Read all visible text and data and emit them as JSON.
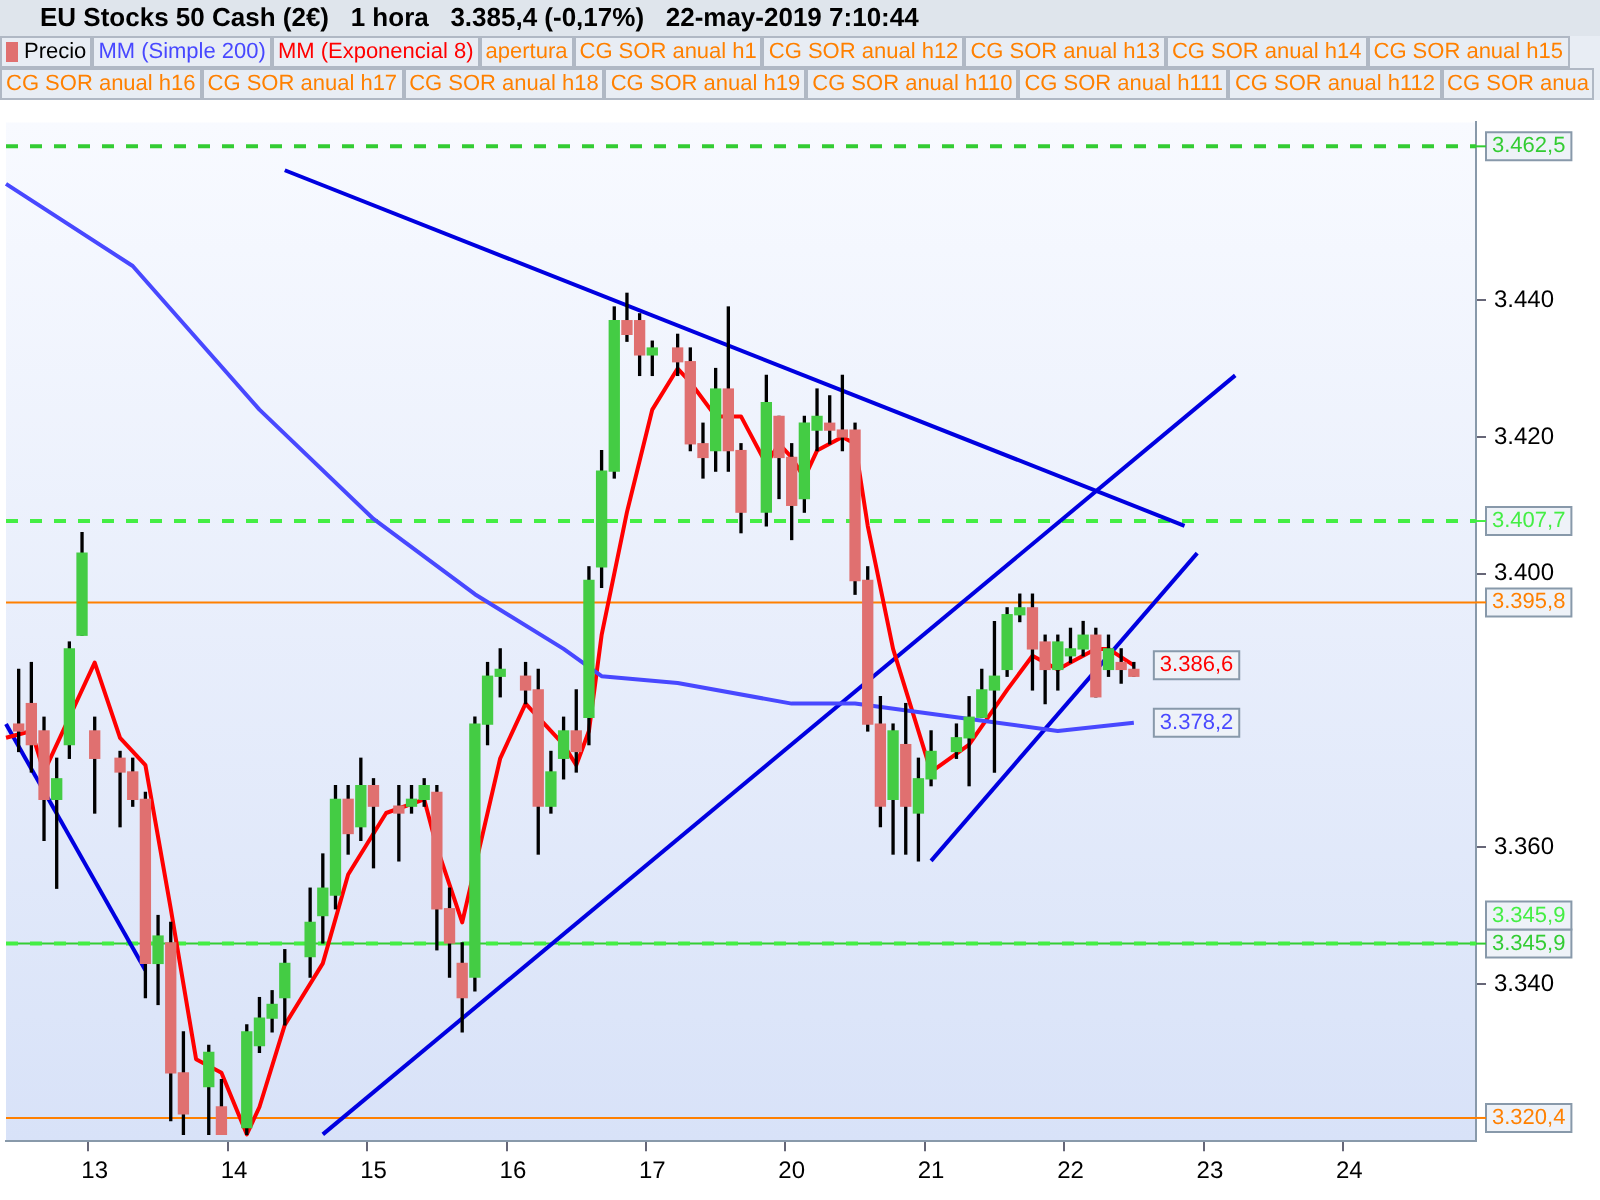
{
  "chart_data": {
    "type": "candlestick",
    "title": "EU Stocks 50 Cash (2€)   1 hora   3.385,4 (-0,17%)   22-may-2019 7:10:44",
    "legend": "top",
    "grid": false,
    "marker": "none",
    "categories": [
      null,
      null,
      null,
      null,
      null,
      null,
      null,
      "13",
      null,
      null,
      null,
      null,
      null,
      null,
      null,
      null,
      null,
      null,
      "14",
      null,
      null,
      null,
      null,
      null,
      null,
      null,
      null,
      null,
      null,
      "15",
      null,
      null,
      null,
      null,
      null,
      null,
      null,
      null,
      null,
      null,
      "16",
      null,
      null,
      null,
      null,
      null,
      null,
      null,
      null,
      null,
      null,
      "17",
      null,
      null,
      null,
      null,
      null,
      null,
      null,
      null,
      null,
      null,
      "20",
      null,
      null,
      null,
      null,
      null,
      null,
      null,
      null,
      null,
      null,
      "21",
      null,
      null,
      null,
      null,
      null,
      null,
      null,
      null,
      null,
      null,
      "22",
      null,
      null,
      null,
      null,
      null,
      null,
      null,
      null,
      null,
      null,
      "23",
      null,
      null,
      null,
      null,
      null,
      null,
      null,
      null,
      null,
      null,
      "24",
      null,
      null,
      null,
      null,
      null,
      null,
      null,
      null,
      null,
      null
    ],
    "ylim": [
      3317,
      3466
    ],
    "yticks": [
      {
        "value": 3340,
        "label": "3.340"
      },
      {
        "value": 3360,
        "label": "3.360"
      },
      {
        "value": 3400,
        "label": "3.400"
      },
      {
        "value": 3420,
        "label": "3.420"
      },
      {
        "value": 3440,
        "label": "3.440"
      }
    ],
    "annotations": [
      "apertura",
      "CG SOR anual h1",
      "CG SOR anual h12",
      "CG SOR anual h13",
      "CG SOR anual h14",
      "CG SOR anual h15",
      "CG SOR anual h16",
      "CG SOR anual h17",
      "CG SOR anual h18",
      "CG SOR anual h19",
      "CG SOR anual h110",
      "CG SOR anual h111",
      "CG SOR anual h112",
      "CG SOR anua"
    ],
    "ref_lines": [
      {
        "axis": "y",
        "value": 3462.5,
        "label": "3.462,5",
        "color": "#33cc33",
        "line_style": "dashed"
      },
      {
        "axis": "y",
        "value": 3407.7,
        "label": "3.407,7",
        "color": "#44ee44",
        "line_style": "dashed"
      },
      {
        "axis": "y",
        "value": 3395.8,
        "label": "3.395,8",
        "color": "#ff8000",
        "line_style": "solid"
      },
      {
        "axis": "y",
        "value": 3345.9,
        "label": "3.345,9",
        "color": "#33cc33",
        "line_style": "solid"
      },
      {
        "axis": "y",
        "value": 3345.9,
        "label": "3.345,9",
        "color": "#44ee44",
        "line_style": "dashed"
      },
      {
        "axis": "y",
        "value": 3320.4,
        "label": "3.320,4",
        "color": "#ff8000",
        "line_style": "solid"
      }
    ],
    "series": [
      {
        "name": "Precio",
        "color": "#000000",
        "colors": [
          null,
          "#e07070",
          "#e07070",
          "#e07070",
          "#44cc44",
          "#44cc44",
          "#44cc44",
          "#e07070",
          null,
          "#e07070",
          "#e07070",
          "#e07070",
          "#44cc44",
          "#e07070",
          "#e07070",
          null,
          "#44cc44",
          "#e07070",
          null,
          "#44cc44",
          "#44cc44",
          "#44cc44",
          "#44cc44",
          null,
          "#44cc44",
          "#44cc44",
          "#44cc44",
          "#e07070",
          "#44cc44",
          "#e07070",
          null,
          "#e07070",
          "#44cc44",
          "#44cc44",
          "#e07070",
          "#e07070",
          "#e07070",
          "#44cc44",
          "#44cc44",
          "#44cc44",
          null,
          "#e07070",
          "#e07070",
          "#44cc44",
          "#44cc44",
          "#e07070",
          "#44cc44",
          "#44cc44",
          "#44cc44",
          "#e07070",
          "#e07070",
          "#44cc44",
          null,
          "#e07070",
          "#e07070",
          "#e07070",
          "#44cc44",
          "#e07070",
          "#e07070",
          null,
          "#44cc44",
          "#e07070",
          "#e07070",
          "#44cc44",
          "#44cc44",
          "#e07070",
          "#e07070",
          "#e07070",
          "#e07070",
          "#e07070",
          "#44cc44",
          "#e07070",
          "#44cc44",
          "#44cc44",
          null,
          "#44cc44",
          "#44cc44",
          "#44cc44",
          "#44cc44",
          "#44cc44",
          "#44cc44",
          "#e07070",
          "#e07070",
          "#44cc44",
          "#44cc44",
          "#44cc44",
          "#e07070",
          "#44cc44",
          "#e07070",
          "#e07070",
          null,
          null,
          null,
          null,
          null,
          null,
          null,
          null,
          null,
          null,
          null,
          null,
          null,
          null,
          null,
          null,
          null,
          null,
          null,
          null,
          null,
          null,
          null,
          null,
          null,
          null,
          null
        ],
        "ohlc": [
          null,
          [
            3378,
            3386,
            3374,
            3377
          ],
          [
            3381,
            3387,
            3371,
            3375
          ],
          [
            3377,
            3379,
            3361,
            3367
          ],
          [
            3367,
            3373,
            3354,
            3370
          ],
          [
            3375,
            3390,
            3373,
            3389
          ],
          [
            3391,
            3406,
            3391,
            3403
          ],
          [
            3377,
            3379,
            3365,
            3373
          ],
          null,
          [
            3373,
            3374,
            3363,
            3371
          ],
          [
            3371,
            3373,
            3366,
            3367
          ],
          [
            3367,
            3368,
            3338,
            3343
          ],
          [
            3343,
            3350,
            3337,
            3347
          ],
          [
            3346,
            3349,
            3320,
            3327
          ],
          [
            3327,
            3333,
            3318,
            3321
          ],
          null,
          [
            3325,
            3331,
            3318,
            3330
          ],
          [
            3322,
            3326,
            3318,
            3318
          ],
          null,
          [
            3319,
            3334,
            3318,
            3333
          ],
          [
            3331,
            3338,
            3330,
            3335
          ],
          [
            3335,
            3339,
            3333,
            3337
          ],
          [
            3338,
            3345,
            3334,
            3343
          ],
          null,
          [
            3344,
            3354,
            3341,
            3349
          ],
          [
            3350,
            3359,
            3346,
            3354
          ],
          [
            3353,
            3369,
            3351,
            3367
          ],
          [
            3367,
            3369,
            3359,
            3362
          ],
          [
            3363,
            3373,
            3361,
            3369
          ],
          [
            3369,
            3370,
            3357,
            3366
          ],
          null,
          [
            3366,
            3369,
            3358,
            3365
          ],
          [
            3366,
            3369,
            3365,
            3367
          ],
          [
            3367,
            3370,
            3366,
            3369
          ],
          [
            3368,
            3369,
            3345,
            3351
          ],
          [
            3351,
            3354,
            3341,
            3346
          ],
          [
            3343,
            3346,
            3333,
            3338
          ],
          [
            3341,
            3379,
            3339,
            3378
          ],
          [
            3378,
            3387,
            3375,
            3385
          ],
          [
            3385,
            3389,
            3382,
            3386
          ],
          null,
          [
            3385,
            3387,
            3381,
            3383
          ],
          [
            3383,
            3386,
            3359,
            3366
          ],
          [
            3366,
            3374,
            3365,
            3371
          ],
          [
            3373,
            3379,
            3370,
            3377
          ],
          [
            3377,
            3383,
            3371,
            3374
          ],
          [
            3379,
            3401,
            3375,
            3399
          ],
          [
            3401,
            3418,
            3398,
            3415
          ],
          [
            3415,
            3439,
            3414,
            3437
          ],
          [
            3437,
            3441,
            3434,
            3435
          ],
          [
            3437,
            3438,
            3429,
            3432
          ],
          [
            3432,
            3434,
            3429,
            3433
          ],
          null,
          [
            3433,
            3435,
            3429,
            3431
          ],
          [
            3431,
            3433,
            3418,
            3419
          ],
          [
            3419,
            3422,
            3414,
            3417
          ],
          [
            3418,
            3430,
            3415,
            3427
          ],
          [
            3427,
            3439,
            3415,
            3418
          ],
          [
            3418,
            3419,
            3406,
            3409
          ],
          null,
          [
            3409,
            3429,
            3407,
            3425
          ],
          [
            3423,
            3423,
            3411,
            3417
          ],
          [
            3417,
            3419,
            3405,
            3410
          ],
          [
            3411,
            3423,
            3409,
            3422
          ],
          [
            3421,
            3427,
            3418,
            3423
          ],
          [
            3422,
            3426,
            3419,
            3421
          ],
          [
            3421,
            3429,
            3418,
            3420
          ],
          [
            3421,
            3422,
            3397,
            3399
          ],
          [
            3399,
            3401,
            3377,
            3378
          ],
          [
            3378,
            3382,
            3363,
            3366
          ],
          [
            3367,
            3378,
            3359,
            3377
          ],
          [
            3375,
            3381,
            3359,
            3366
          ],
          [
            3365,
            3373,
            3358,
            3370
          ],
          [
            3370,
            3377,
            3369,
            3374
          ],
          null,
          [
            3374,
            3378,
            3373,
            3376
          ],
          [
            3376,
            3382,
            3369,
            3379
          ],
          [
            3379,
            3386,
            3379,
            3383
          ],
          [
            3383,
            3393,
            3371,
            3385
          ],
          [
            3386,
            3395,
            3385,
            3394
          ],
          [
            3394,
            3397,
            3393,
            3395
          ],
          [
            3395,
            3397,
            3383,
            3389
          ],
          [
            3390,
            3391,
            3381,
            3386
          ],
          [
            3386,
            3391,
            3383,
            3390
          ],
          [
            3388,
            3392,
            3387,
            3389
          ],
          [
            3389,
            3393,
            3388,
            3391
          ],
          [
            3391,
            3392,
            3382,
            3382
          ],
          [
            3386,
            3391,
            3385,
            3389
          ],
          [
            3387,
            3389,
            3384,
            3386
          ],
          [
            3386,
            3387,
            3385,
            3385
          ],
          null,
          null,
          null,
          null,
          null,
          null,
          null,
          null,
          null,
          null,
          null,
          null,
          null,
          null,
          null,
          null,
          null,
          null,
          null,
          null,
          null,
          null,
          null,
          null,
          null,
          null,
          null
        ]
      },
      {
        "type": "line",
        "name": "MM (Simple 200)",
        "color": "#4848ff",
        "value_labels": [
          null,
          null,
          null,
          null,
          null,
          null,
          null,
          null,
          null,
          null,
          null,
          null,
          null,
          null,
          null,
          null,
          null,
          null,
          null,
          null,
          null,
          null,
          null,
          null,
          null,
          null,
          null,
          null,
          null,
          null,
          null,
          null,
          null,
          null,
          null,
          null,
          null,
          null,
          null,
          null,
          null,
          null,
          null,
          null,
          null,
          null,
          null,
          null,
          null,
          null,
          null,
          null,
          null,
          null,
          null,
          null,
          null,
          null,
          null,
          null,
          null,
          null,
          null,
          null,
          null,
          null,
          null,
          null,
          null,
          null,
          null,
          null,
          null,
          null,
          null,
          null,
          null,
          null,
          null,
          null,
          null,
          null,
          null,
          null,
          null,
          null,
          null,
          null,
          null,
          "3.378,2",
          null,
          null,
          null,
          null,
          null,
          null,
          null,
          null,
          null,
          null,
          null,
          null,
          null,
          null,
          null,
          null,
          null,
          null,
          null,
          null,
          null,
          null,
          null,
          null,
          null,
          null,
          null
        ],
        "values": [
          3457,
          null,
          null,
          null,
          null,
          null,
          null,
          null,
          null,
          null,
          3445,
          null,
          null,
          null,
          null,
          null,
          null,
          null,
          null,
          null,
          3424,
          null,
          null,
          null,
          null,
          null,
          null,
          null,
          null,
          3408,
          null,
          null,
          null,
          null,
          null,
          null,
          null,
          3397,
          null,
          null,
          null,
          null,
          null,
          null,
          3389,
          null,
          null,
          3385,
          null,
          null,
          null,
          null,
          null,
          3384,
          null,
          null,
          null,
          null,
          null,
          null,
          null,
          null,
          3381,
          null,
          null,
          null,
          null,
          3381,
          null,
          null,
          null,
          null,
          null,
          null,
          null,
          3379,
          null,
          null,
          null,
          null,
          null,
          null,
          null,
          3377,
          null,
          null,
          null,
          null,
          null,
          3378.2,
          null,
          null,
          null,
          null,
          null,
          null,
          null,
          null,
          null,
          null,
          null,
          null,
          null,
          null,
          null,
          null,
          null,
          null,
          null,
          null,
          null,
          null,
          null,
          null,
          null,
          null,
          null
        ]
      },
      {
        "type": "line",
        "name": "MM (Exponencial 8)",
        "color": "#ff0000",
        "value_labels": [
          null,
          null,
          null,
          null,
          null,
          null,
          null,
          null,
          null,
          null,
          null,
          null,
          null,
          null,
          null,
          null,
          null,
          null,
          null,
          null,
          null,
          null,
          null,
          null,
          null,
          null,
          null,
          null,
          null,
          null,
          null,
          null,
          null,
          null,
          null,
          null,
          null,
          null,
          null,
          null,
          null,
          null,
          null,
          null,
          null,
          null,
          null,
          null,
          null,
          null,
          null,
          null,
          null,
          null,
          null,
          null,
          null,
          null,
          null,
          null,
          null,
          null,
          null,
          null,
          null,
          null,
          null,
          null,
          null,
          null,
          null,
          null,
          null,
          null,
          null,
          null,
          null,
          null,
          null,
          null,
          null,
          null,
          null,
          null,
          null,
          null,
          null,
          null,
          null,
          "3.386,6",
          null,
          null,
          null,
          null,
          null,
          null,
          null,
          null,
          null,
          null,
          null,
          null,
          null,
          null,
          null,
          null,
          null,
          null,
          null,
          null,
          null,
          null,
          null,
          null,
          null,
          null,
          null
        ],
        "values": [
          3376,
          null,
          3377,
          3371,
          null,
          null,
          null,
          3387,
          null,
          3376,
          null,
          3372,
          null,
          3351,
          null,
          3329,
          null,
          3327,
          null,
          3318,
          3322,
          null,
          3334,
          null,
          null,
          3343,
          null,
          3356,
          null,
          null,
          3365,
          null,
          null,
          3367,
          3360,
          null,
          3349,
          null,
          null,
          3373,
          null,
          3381,
          null,
          null,
          3375,
          3372,
          3377,
          3391,
          null,
          3409,
          null,
          3424,
          null,
          3430,
          3428,
          null,
          3423,
          null,
          3423,
          null,
          3416,
          3419,
          3417,
          3414,
          3418,
          null,
          3420,
          3419,
          3407,
          null,
          3389,
          null,
          null,
          3371,
          null,
          null,
          3375,
          null,
          null,
          3383,
          null,
          3388,
          null,
          3386,
          3387,
          null,
          3389,
          3389,
          null,
          3386.6,
          null,
          null,
          null,
          null,
          null,
          null,
          null,
          null,
          null,
          null,
          null,
          null,
          null,
          null,
          null,
          null,
          null,
          null,
          null,
          null,
          null,
          null,
          null,
          null,
          null,
          null,
          null
        ]
      },
      {
        "type": "line",
        "color": "#0000e0",
        "values": [
          null,
          null,
          null,
          null,
          null,
          null,
          null,
          null,
          null,
          null,
          null,
          null,
          null,
          null,
          null,
          null,
          null,
          null,
          null,
          null,
          null,
          null,
          3459,
          null,
          null,
          null,
          null,
          null,
          null,
          null,
          null,
          null,
          null,
          null,
          null,
          null,
          null,
          null,
          null,
          null,
          null,
          null,
          null,
          null,
          null,
          null,
          null,
          null,
          null,
          null,
          null,
          null,
          null,
          null,
          null,
          null,
          null,
          null,
          null,
          null,
          null,
          null,
          null,
          null,
          null,
          null,
          null,
          null,
          null,
          null,
          null,
          null,
          null,
          null,
          null,
          null,
          null,
          null,
          null,
          null,
          null,
          null,
          null,
          null,
          null,
          null,
          null,
          null,
          null,
          null,
          null,
          null,
          null,
          3407,
          null,
          null,
          null,
          null,
          null,
          null,
          null,
          null,
          null,
          null,
          null,
          null,
          null,
          null,
          null,
          null,
          null,
          null,
          null,
          null,
          null,
          null,
          null
        ]
      },
      {
        "type": "line",
        "color": "#0000e0",
        "values": [
          3378,
          null,
          null,
          null,
          null,
          null,
          null,
          null,
          null,
          null,
          null,
          3342,
          null,
          null,
          null,
          null,
          null,
          null,
          null,
          null,
          null,
          null,
          null,
          null,
          null,
          null,
          null,
          null,
          null,
          null,
          null,
          null,
          null,
          null,
          null,
          null,
          null,
          null,
          null,
          null,
          null,
          null,
          null,
          null,
          null,
          null,
          null,
          null,
          null,
          null,
          null,
          null,
          null,
          null,
          null,
          null,
          null,
          null,
          null,
          null,
          null,
          null,
          null,
          null,
          null,
          null,
          null,
          null,
          null,
          null,
          null,
          null,
          null,
          null,
          null,
          null,
          null,
          null,
          null,
          null,
          null,
          null,
          null,
          null,
          null,
          null,
          null,
          null,
          null,
          null,
          null,
          null,
          null,
          null,
          null,
          null,
          null,
          null,
          null,
          null,
          null,
          null,
          null,
          null,
          null,
          null,
          null,
          null,
          null,
          null,
          null,
          null,
          null,
          null,
          null,
          null,
          null
        ]
      },
      {
        "type": "line",
        "color": "#0000e0",
        "values": [
          null,
          null,
          null,
          null,
          null,
          null,
          null,
          null,
          null,
          null,
          null,
          null,
          null,
          null,
          null,
          null,
          null,
          null,
          null,
          null,
          null,
          null,
          null,
          null,
          null,
          3318,
          null,
          null,
          null,
          null,
          null,
          null,
          null,
          null,
          null,
          null,
          null,
          null,
          null,
          null,
          null,
          null,
          null,
          null,
          null,
          null,
          null,
          null,
          null,
          null,
          null,
          null,
          null,
          null,
          null,
          null,
          null,
          null,
          null,
          null,
          null,
          null,
          null,
          null,
          null,
          null,
          null,
          null,
          null,
          null,
          null,
          null,
          null,
          null,
          null,
          null,
          null,
          null,
          null,
          null,
          null,
          null,
          null,
          null,
          null,
          null,
          null,
          null,
          null,
          null,
          null,
          null,
          null,
          null,
          null,
          null,
          null,
          3429,
          null,
          null,
          null,
          null,
          null,
          null,
          null,
          null,
          null,
          null,
          null,
          null,
          null,
          null,
          null,
          null,
          null,
          null,
          null
        ]
      },
      {
        "type": "line",
        "color": "#0000e0",
        "values": [
          null,
          null,
          null,
          null,
          null,
          null,
          null,
          null,
          null,
          null,
          null,
          null,
          null,
          null,
          null,
          null,
          null,
          null,
          null,
          null,
          null,
          null,
          null,
          null,
          null,
          null,
          null,
          null,
          null,
          null,
          null,
          null,
          null,
          null,
          null,
          null,
          null,
          null,
          null,
          null,
          null,
          null,
          null,
          null,
          null,
          null,
          null,
          null,
          null,
          null,
          null,
          null,
          null,
          null,
          null,
          null,
          null,
          null,
          null,
          null,
          null,
          null,
          null,
          null,
          null,
          null,
          null,
          null,
          null,
          null,
          null,
          null,
          null,
          3358,
          null,
          null,
          null,
          null,
          null,
          null,
          null,
          null,
          null,
          null,
          null,
          null,
          null,
          null,
          null,
          null,
          null,
          null,
          null,
          null,
          3403,
          null,
          null,
          null,
          null,
          null,
          null,
          null,
          null,
          null,
          null,
          null,
          null,
          null,
          null,
          null,
          null,
          null,
          null,
          null,
          null,
          null,
          null
        ]
      }
    ]
  }
}
